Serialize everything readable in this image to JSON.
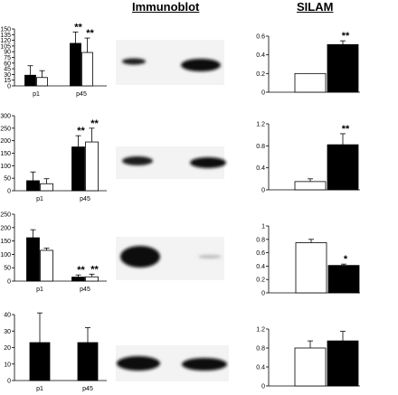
{
  "headings": {
    "immunoblot": "Immunoblot",
    "silam": "SILAM"
  },
  "chart_data": [
    {
      "type": "bar",
      "panel": "immunoblot",
      "categories": [
        "p1",
        "p45"
      ],
      "series": [
        {
          "values": [
            28,
            112
          ],
          "errors": [
            25,
            30
          ],
          "color": "#000000"
        },
        {
          "values": [
            22,
            88
          ],
          "errors": [
            18,
            38
          ],
          "color": "#ffffff"
        }
      ],
      "yticks": [
        0,
        15,
        30,
        45,
        60,
        75,
        90,
        105,
        120,
        135,
        150
      ],
      "ylim": [
        0,
        150
      ],
      "annotations": [
        {
          "category": 1,
          "series": 0,
          "text": "**"
        },
        {
          "category": 1,
          "series": 1,
          "text": "**"
        }
      ]
    },
    {
      "type": "bar",
      "panel": "silam",
      "categories": [
        "",
        ""
      ],
      "series": [
        {
          "values": [
            0.2,
            0.51
          ],
          "errors": [
            0,
            0.04
          ],
          "colors": [
            "#ffffff",
            "#000000"
          ]
        }
      ],
      "yticks": [
        0,
        0.2,
        0.4,
        0.6
      ],
      "ylim": [
        0,
        0.6
      ],
      "annotations": [
        {
          "category": 1,
          "series": 0,
          "text": "**"
        }
      ]
    },
    {
      "type": "bar",
      "panel": "immunoblot",
      "categories": [
        "p1",
        "p45"
      ],
      "series": [
        {
          "values": [
            40,
            175
          ],
          "errors": [
            35,
            45
          ],
          "color": "#000000"
        },
        {
          "values": [
            28,
            195
          ],
          "errors": [
            20,
            55
          ],
          "color": "#ffffff"
        }
      ],
      "yticks": [
        0,
        50,
        100,
        150,
        200,
        250,
        300
      ],
      "ylim": [
        0,
        300
      ],
      "annotations": [
        {
          "category": 1,
          "series": 0,
          "text": "**"
        },
        {
          "category": 1,
          "series": 1,
          "text": "**"
        }
      ]
    },
    {
      "type": "bar",
      "panel": "silam",
      "categories": [
        "",
        ""
      ],
      "series": [
        {
          "values": [
            0.15,
            0.82
          ],
          "errors": [
            0.05,
            0.2
          ],
          "colors": [
            "#ffffff",
            "#000000"
          ]
        }
      ],
      "yticks": [
        0,
        0.4,
        0.8,
        1.2
      ],
      "ylim": [
        0,
        1.2
      ],
      "annotations": [
        {
          "category": 1,
          "series": 0,
          "text": "**"
        }
      ]
    },
    {
      "type": "bar",
      "panel": "immunoblot",
      "categories": [
        "p1",
        "p45"
      ],
      "series": [
        {
          "values": [
            162,
            15
          ],
          "errors": [
            30,
            8
          ],
          "color": "#000000"
        },
        {
          "values": [
            115,
            16
          ],
          "errors": [
            8,
            10
          ],
          "color": "#ffffff"
        }
      ],
      "yticks": [
        0,
        50,
        100,
        150,
        200,
        250
      ],
      "ylim": [
        0,
        250
      ],
      "annotations": [
        {
          "category": 1,
          "series": 0,
          "text": "**"
        },
        {
          "category": 1,
          "series": 1,
          "text": "**"
        }
      ]
    },
    {
      "type": "bar",
      "panel": "silam",
      "categories": [
        "",
        ""
      ],
      "series": [
        {
          "values": [
            0.75,
            0.41
          ],
          "errors": [
            0.05,
            0.02
          ],
          "colors": [
            "#ffffff",
            "#000000"
          ]
        }
      ],
      "yticks": [
        0,
        0.2,
        0.4,
        0.6,
        0.8,
        1
      ],
      "ylim": [
        0,
        1
      ],
      "annotations": [
        {
          "category": 1,
          "series": 0,
          "text": "*"
        }
      ]
    },
    {
      "type": "bar",
      "panel": "immunoblot",
      "categories": [
        "p1",
        "p45"
      ],
      "series": [
        {
          "values": [
            23,
            23
          ],
          "errors": [
            18,
            9
          ],
          "color": "#000000"
        }
      ],
      "yticks": [
        0,
        10,
        20,
        30,
        40
      ],
      "ylim": [
        0,
        40
      ],
      "annotations": []
    },
    {
      "type": "bar",
      "panel": "silam",
      "categories": [
        "",
        ""
      ],
      "series": [
        {
          "values": [
            0.8,
            0.95
          ],
          "errors": [
            0.15,
            0.2
          ],
          "colors": [
            "#ffffff",
            "#000000"
          ]
        }
      ],
      "yticks": [
        0,
        0.4,
        0.8,
        1.2
      ],
      "ylim": [
        0,
        1.2
      ],
      "annotations": []
    }
  ]
}
